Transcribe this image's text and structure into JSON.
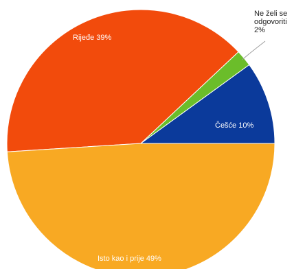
{
  "chart_data": {
    "type": "pie",
    "title": "",
    "slices": [
      {
        "label": "Češće",
        "value": 10,
        "text": "Češće 10%",
        "color": "#0b3a9b"
      },
      {
        "label": "Ne želi se odgovoriti",
        "value": 2,
        "text_lines": [
          "Ne želi se",
          "odgovoriti",
          "2%"
        ],
        "color": "#6bbd2a"
      },
      {
        "label": "Rijeđe",
        "value": 39,
        "text": "Rijeđe 39%",
        "color": "#f24b0c"
      },
      {
        "label": "Isto kao i prije",
        "value": 49,
        "text": "Isto kao i prije 49%",
        "color": "#f8a923"
      }
    ],
    "legend": "none"
  }
}
